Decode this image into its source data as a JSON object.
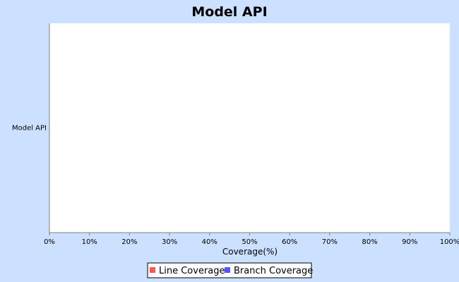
{
  "chart_data": {
    "type": "bar",
    "orientation": "horizontal",
    "title": "Model API",
    "categories": [
      "Model API"
    ],
    "series": [
      {
        "name": "Line Coverage",
        "color": "#ff5555",
        "values": [
          0
        ]
      },
      {
        "name": "Branch Coverage",
        "color": "#5555ff",
        "values": [
          0
        ]
      }
    ],
    "xlabel": "Coverage(%)",
    "ylabel": "",
    "xlim": [
      0,
      100
    ],
    "xticks": [
      "0%",
      "10%",
      "20%",
      "30%",
      "40%",
      "50%",
      "60%",
      "70%",
      "80%",
      "90%",
      "100%"
    ],
    "grid": false,
    "legend_position": "bottom"
  },
  "colors": {
    "background": "#cce0ff",
    "plot_background": "#ffffff"
  }
}
